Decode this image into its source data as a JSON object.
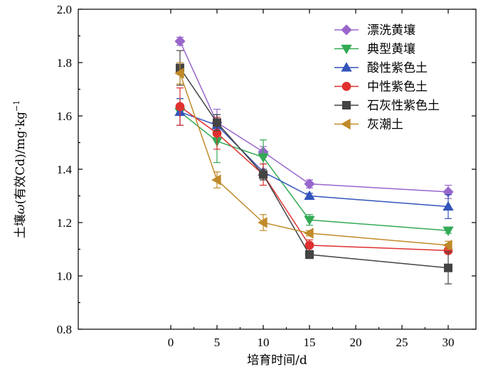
{
  "chart_data": {
    "type": "line",
    "xlabel": "培育时间/d",
    "ylabel_prefix": "土壤",
    "ylabel_var": "ω",
    "ylabel_suffix": "(有效Cd)/mg·kg",
    "ylabel_sup": "−1",
    "xlim": [
      -10,
      33
    ],
    "ylim": [
      0.8,
      2.0
    ],
    "xticks": [
      0,
      5,
      10,
      15,
      20,
      25,
      30
    ],
    "yticks": [
      0.8,
      1.0,
      1.2,
      1.4,
      1.6,
      1.8,
      2.0
    ],
    "ytick_labels": [
      "0.8",
      "1.0",
      "1.2",
      "1.4",
      "1.6",
      "1.8",
      "2.0"
    ],
    "grid": false,
    "legend_position": "top-right",
    "series": [
      {
        "name": "漂洗黄壤",
        "color": "#9966cc",
        "marker": "diamond",
        "x": [
          1,
          5,
          10,
          15,
          30
        ],
        "y": [
          1.88,
          1.575,
          1.465,
          1.345,
          1.315
        ],
        "err": [
          0.015,
          0.05,
          0.02,
          0.015,
          0.025
        ]
      },
      {
        "name": "典型黄壤",
        "color": "#33aa55",
        "marker": "triangle-down",
        "x": [
          1,
          5,
          10,
          15,
          30
        ],
        "y": [
          1.615,
          1.505,
          1.445,
          1.21,
          1.17
        ],
        "err": [
          0.05,
          0.08,
          0.065,
          0.02,
          0.01
        ]
      },
      {
        "name": "酸性紫色土",
        "color": "#3355bb",
        "marker": "triangle-up",
        "x": [
          1,
          5,
          10,
          15,
          30
        ],
        "y": [
          1.615,
          1.565,
          1.39,
          1.3,
          1.26
        ],
        "err": [
          0.05,
          0.04,
          0.03,
          0.01,
          0.045
        ]
      },
      {
        "name": "中性紫色土",
        "color": "#e03030",
        "marker": "circle",
        "x": [
          1,
          5,
          10,
          15,
          30
        ],
        "y": [
          1.635,
          1.535,
          1.38,
          1.115,
          1.095
        ],
        "err": [
          0.07,
          0.06,
          0.04,
          0.02,
          0.01
        ]
      },
      {
        "name": "石灰性紫色土",
        "color": "#444444",
        "marker": "square",
        "x": [
          1,
          5,
          10,
          15,
          30
        ],
        "y": [
          1.78,
          1.575,
          1.38,
          1.08,
          1.03
        ],
        "err": [
          0.065,
          0.03,
          0.02,
          0.015,
          0.06
        ]
      },
      {
        "name": "灰潮土",
        "color": "#c08a2a",
        "marker": "triangle-left",
        "x": [
          1,
          5,
          10,
          15,
          30
        ],
        "y": [
          1.76,
          1.36,
          1.2,
          1.16,
          1.115
        ],
        "err": [
          0.04,
          0.03,
          0.03,
          0.01,
          0.015
        ]
      }
    ]
  }
}
